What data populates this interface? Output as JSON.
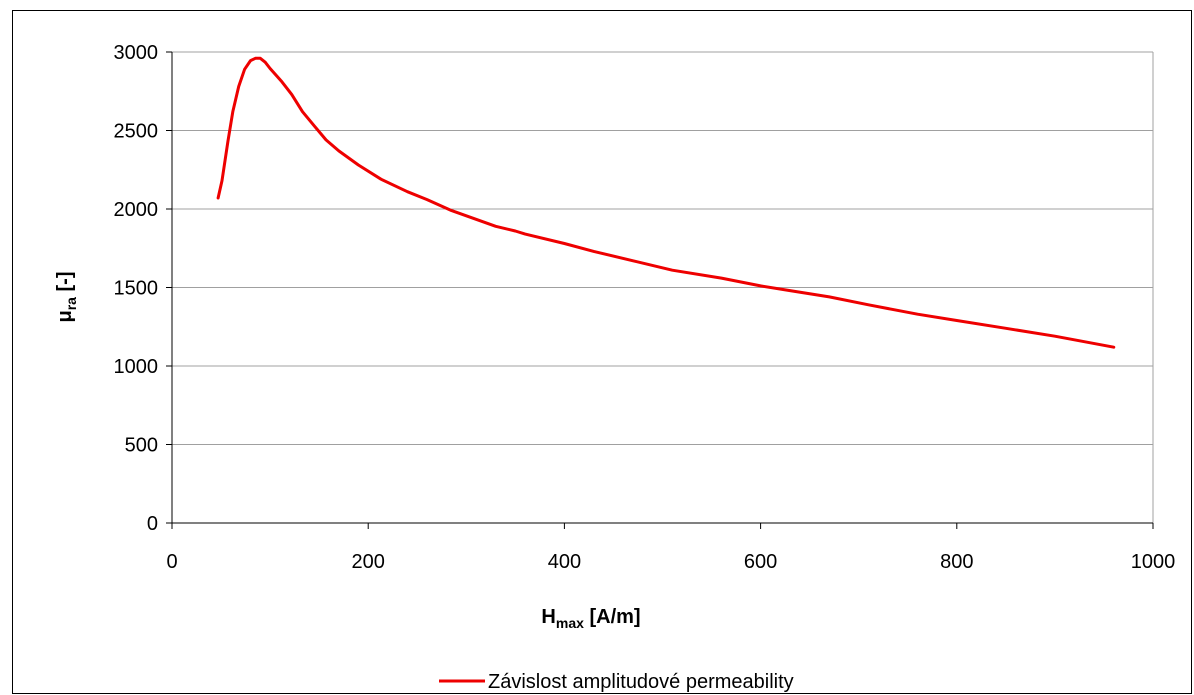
{
  "chart_data": {
    "type": "line",
    "title": "",
    "xlabel": {
      "main": "H",
      "sub": "max",
      "rest": " [A/m]"
    },
    "ylabel": {
      "main": "μ",
      "sub": "ra",
      "rest": " [-]"
    },
    "xlim": [
      0,
      1000
    ],
    "ylim": [
      0,
      3000
    ],
    "xticks": [
      0,
      200,
      400,
      600,
      800,
      1000
    ],
    "yticks": [
      0,
      500,
      1000,
      1500,
      2000,
      2500,
      3000
    ],
    "grid": {
      "horizontal": true,
      "vertical": false
    },
    "legend_position": "bottom-center",
    "series": [
      {
        "name": "Závislost amplitudové permeability",
        "color": "#ee0000",
        "x": [
          47,
          51,
          57,
          62,
          68,
          74,
          80,
          85,
          90,
          95,
          100,
          105,
          112,
          122,
          133,
          145,
          157,
          170,
          190,
          213,
          240,
          260,
          285,
          330,
          350,
          360,
          400,
          430,
          470,
          510,
          560,
          600,
          630,
          670,
          710,
          760,
          800,
          850,
          900,
          960
        ],
        "y": [
          2070,
          2180,
          2430,
          2620,
          2780,
          2890,
          2945,
          2960,
          2960,
          2935,
          2895,
          2860,
          2810,
          2730,
          2620,
          2530,
          2440,
          2370,
          2280,
          2190,
          2110,
          2060,
          1990,
          1890,
          1860,
          1840,
          1780,
          1730,
          1670,
          1610,
          1560,
          1510,
          1480,
          1440,
          1390,
          1330,
          1290,
          1240,
          1190,
          1120
        ]
      }
    ]
  }
}
